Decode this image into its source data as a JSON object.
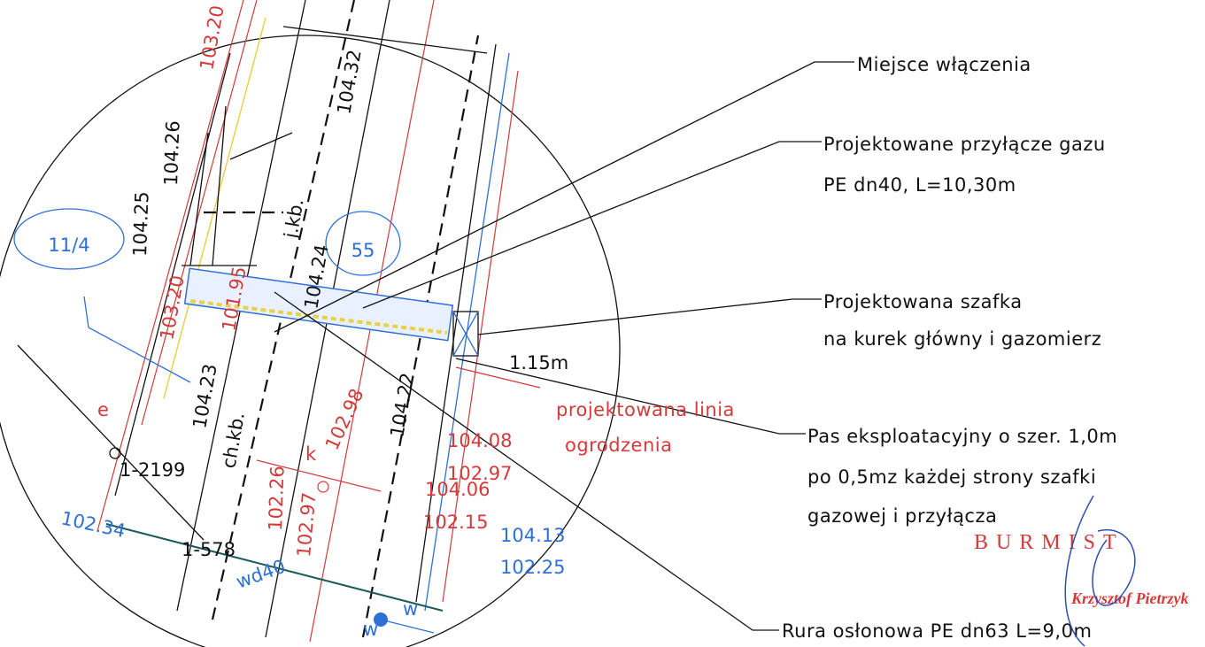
{
  "callouts": [
    {
      "lines": [
        "Miejsce włączenia"
      ]
    },
    {
      "lines": [
        "Projektowane przyłącze gazu",
        "PE dn40, L=10,30m"
      ]
    },
    {
      "lines": [
        "Projektowana szafka",
        "na kurek główny i gazomierz"
      ]
    },
    {
      "lines": [
        "Pas eksploatacyjny o szer. 1,0m",
        "po 0,5mz każdej strony szafki",
        "gazowej i przyłącza"
      ]
    },
    {
      "lines": [
        "Rura osłonowa PE dn63 L=9,0m"
      ]
    }
  ],
  "fence_note": [
    "projektowana linia",
    "ogrodzenia"
  ],
  "stamp": {
    "title": "BURMIST",
    "name": "Krzysztof Pietrzyk"
  },
  "labels": [
    "11/4",
    "55",
    "104.26",
    "104.25",
    "103.20",
    "104.32",
    "j.kb.",
    "104.24",
    "103.20",
    "101.95",
    "104.23",
    "ch.kb.",
    "104.22",
    "102.98",
    "k",
    "104.08",
    "102.97",
    "104.06",
    "102.15",
    "104.13",
    "102.25",
    "102.26",
    "102.97",
    "e",
    "1-2199",
    "1-578",
    "102.34",
    "wd40",
    "1.15m",
    "w",
    "w"
  ]
}
